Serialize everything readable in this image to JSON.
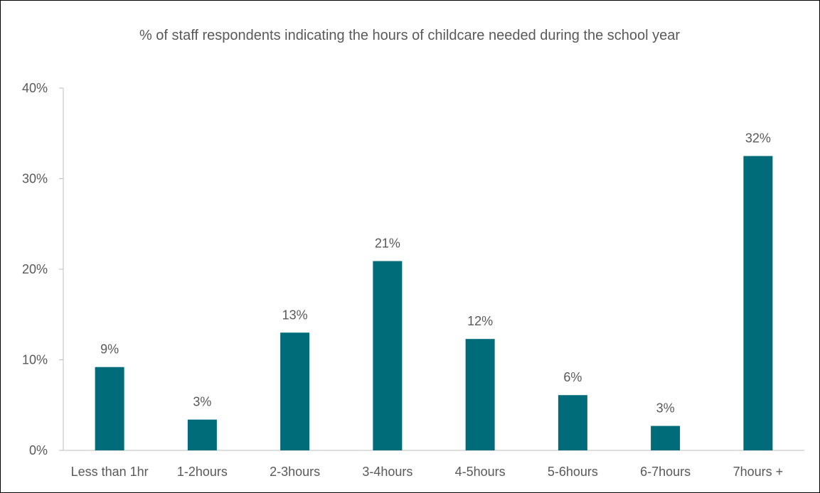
{
  "chart_data": {
    "type": "bar",
    "title": "% of staff respondents indicating the hours of childcare needed during the school year",
    "xlabel": "",
    "ylabel": "",
    "categories": [
      "Less than 1hr",
      "1-2hours",
      "2-3hours",
      "3-4hours",
      "4-5hours",
      "5-6hours",
      "6-7hours",
      "7hours +"
    ],
    "values": [
      9.2,
      3.4,
      13.0,
      20.9,
      12.3,
      6.1,
      2.7,
      32.5
    ],
    "data_labels": [
      "9%",
      "3%",
      "13%",
      "21%",
      "12%",
      "6%",
      "3%",
      "32%"
    ],
    "ylim": [
      0,
      40
    ],
    "yticks": [
      0,
      10,
      20,
      30,
      40
    ],
    "ytick_labels": [
      "0%",
      "10%",
      "20%",
      "30%",
      "40%"
    ],
    "grid": false,
    "legend": "none",
    "bar_color": "#006C7A",
    "axis_color": "#BFBFBF",
    "text_color": "#595959"
  }
}
